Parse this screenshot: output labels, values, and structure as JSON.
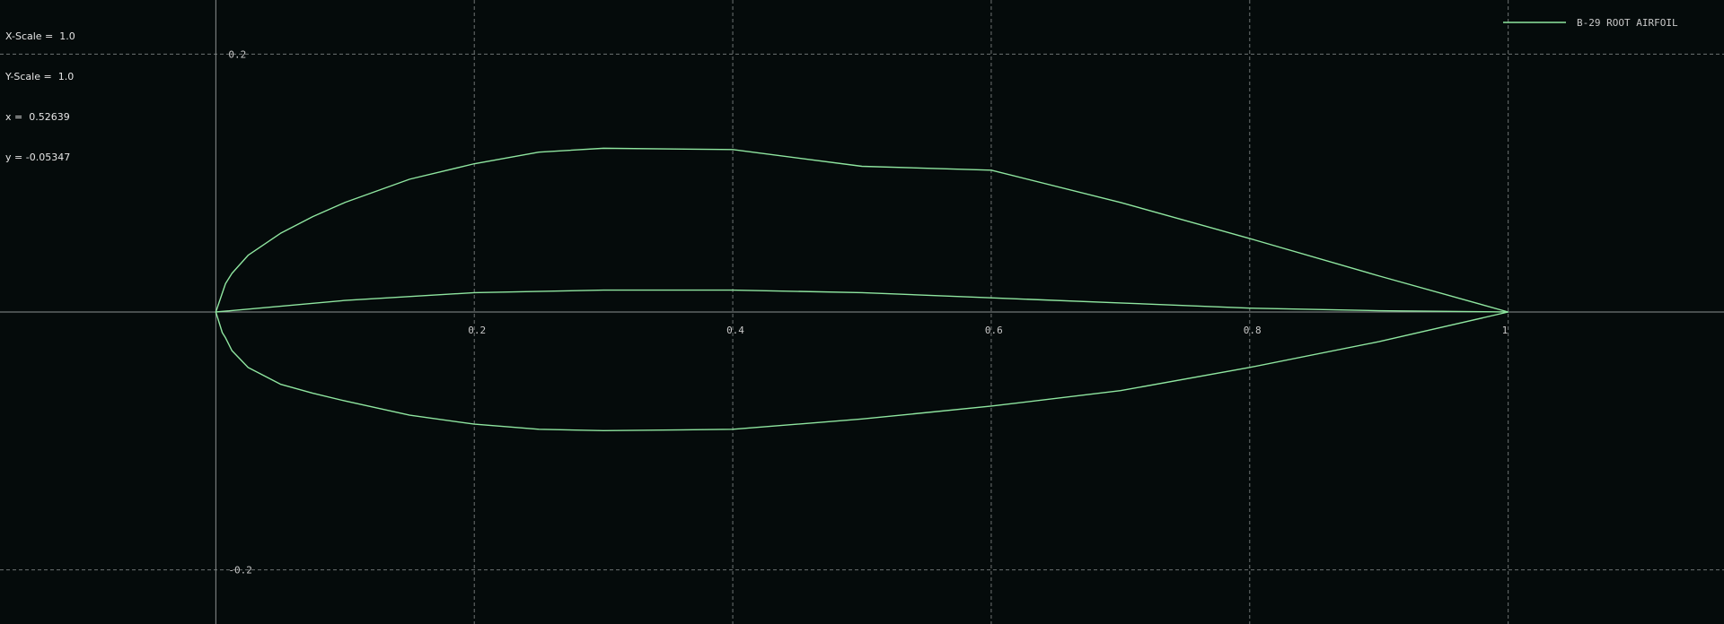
{
  "readout": {
    "x_scale_label": "X-Scale =",
    "x_scale_value": "1.0",
    "y_scale_label": "Y-Scale =",
    "y_scale_value": "1.0",
    "x_label": "x =",
    "x_value": "0.52639",
    "y_label": "y =",
    "y_value": "-0.05347"
  },
  "colors": {
    "background": "#050b0b",
    "series": "#8fe6a0",
    "grid": "#6e7373",
    "axis": "#8c9090"
  },
  "chart_data": {
    "type": "line",
    "title": "",
    "xlabel": "",
    "ylabel": "",
    "xlim": [
      -0.167,
      1.167
    ],
    "ylim": [
      -0.242,
      0.242
    ],
    "grid": true,
    "legend_position": "top-right",
    "x_ticks": [
      {
        "value": 0.2,
        "label": "0.2"
      },
      {
        "value": 0.4,
        "label": "0.4"
      },
      {
        "value": 0.6,
        "label": "0.6"
      },
      {
        "value": 0.8,
        "label": "0.8"
      },
      {
        "value": 1.0,
        "label": "1"
      }
    ],
    "y_ticks": [
      {
        "value": 0.2,
        "label": "0.2"
      },
      {
        "value": -0.2,
        "label": "-0.2"
      }
    ],
    "series": [
      {
        "name": "B-29 ROOT AIRFOIL",
        "x": [
          1.0,
          0.9,
          0.8,
          0.7,
          0.6,
          0.5,
          0.4,
          0.3,
          0.25,
          0.2,
          0.15,
          0.1,
          0.075,
          0.05,
          0.025,
          0.0125,
          0.0075,
          0.0,
          0.005,
          0.0075,
          0.0125,
          0.025,
          0.05,
          0.075,
          0.1,
          0.15,
          0.2,
          0.25,
          0.3,
          0.4,
          0.5,
          0.6,
          0.7,
          0.8,
          0.9,
          1.0
        ],
        "y": [
          0.0,
          0.028,
          0.057,
          0.085,
          0.11,
          0.113,
          0.126,
          0.127,
          0.124,
          0.115,
          0.103,
          0.085,
          0.074,
          0.061,
          0.044,
          0.03,
          0.022,
          0.0,
          -0.016,
          -0.02,
          -0.03,
          -0.043,
          -0.056,
          -0.063,
          -0.069,
          -0.08,
          -0.087,
          -0.091,
          -0.092,
          -0.091,
          -0.083,
          -0.073,
          -0.061,
          -0.043,
          -0.023,
          0.0
        ]
      },
      {
        "name": "",
        "x": [
          0.0,
          0.1,
          0.2,
          0.3,
          0.4,
          0.5,
          0.6,
          0.7,
          0.8,
          0.9,
          1.0
        ],
        "y": [
          0.0,
          0.009,
          0.015,
          0.017,
          0.017,
          0.015,
          0.011,
          0.007,
          0.003,
          0.001,
          0.0
        ]
      }
    ]
  }
}
